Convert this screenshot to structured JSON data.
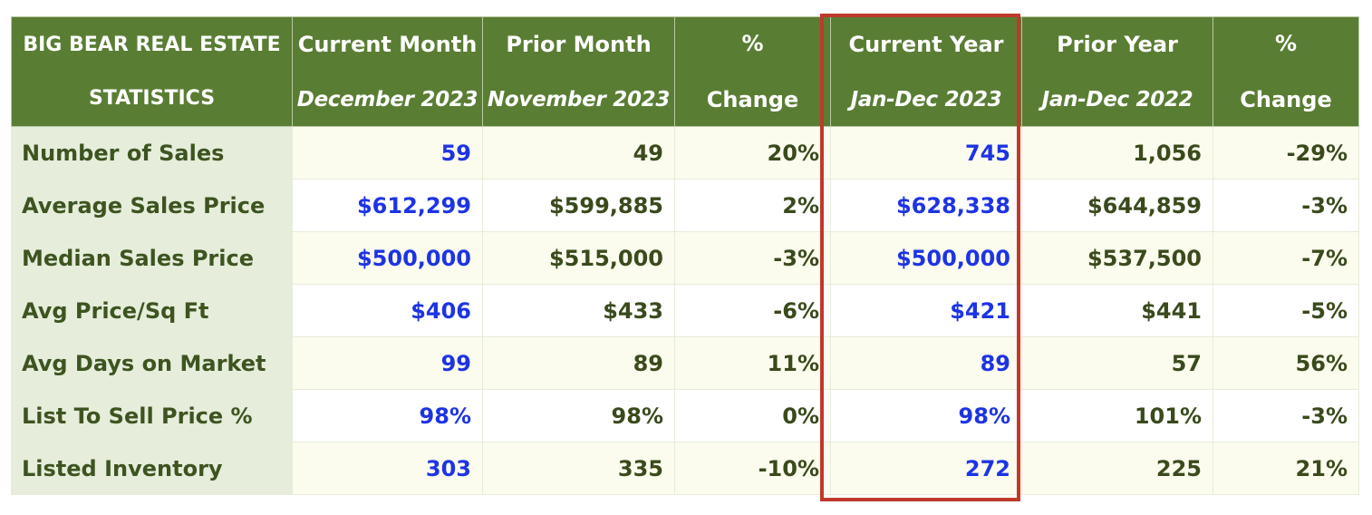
{
  "header": {
    "corner": [
      "BIG BEAR REAL ESTATE",
      "STATISTICS"
    ],
    "columns": [
      {
        "line1": "Current Month",
        "line2": "December 2023"
      },
      {
        "line1": "Prior Month",
        "line2": "November 2023"
      },
      {
        "line1": "%",
        "line2": "Change"
      },
      {
        "line1": "Current Year",
        "line2": "Jan-Dec 2023"
      },
      {
        "line1": "Prior Year",
        "line2": "Jan-Dec 2022"
      },
      {
        "line1": "%",
        "line2": "Change"
      }
    ]
  },
  "rows": [
    {
      "label": "Number of Sales",
      "values": [
        "59",
        "49",
        "20%",
        "745",
        "1,056",
        "-29%"
      ]
    },
    {
      "label": "Average Sales Price",
      "values": [
        "$612,299",
        "$599,885",
        "2%",
        "$628,338",
        "$644,859",
        "-3%"
      ]
    },
    {
      "label": "Median Sales Price",
      "values": [
        "$500,000",
        "$515,000",
        "-3%",
        "$500,000",
        "$537,500",
        "-7%"
      ]
    },
    {
      "label": "Avg Price/Sq Ft",
      "values": [
        "$406",
        "$433",
        "-6%",
        "$421",
        "$441",
        "-5%"
      ]
    },
    {
      "label": "Avg Days on Market",
      "values": [
        "99",
        "89",
        "11%",
        "89",
        "57",
        "56%"
      ]
    },
    {
      "label": "List To Sell Price %",
      "values": [
        "98%",
        "98%",
        "0%",
        "98%",
        "101%",
        "-3%"
      ]
    },
    {
      "label": "Listed Inventory",
      "values": [
        "303",
        "335",
        "-10%",
        "272",
        "225",
        "21%"
      ]
    }
  ],
  "colors": {
    "header_bg": "#5a7d34",
    "label_bg": "#e6eddb",
    "highlight_values": "#1d34e3",
    "highlight_border": "#c0392b"
  }
}
